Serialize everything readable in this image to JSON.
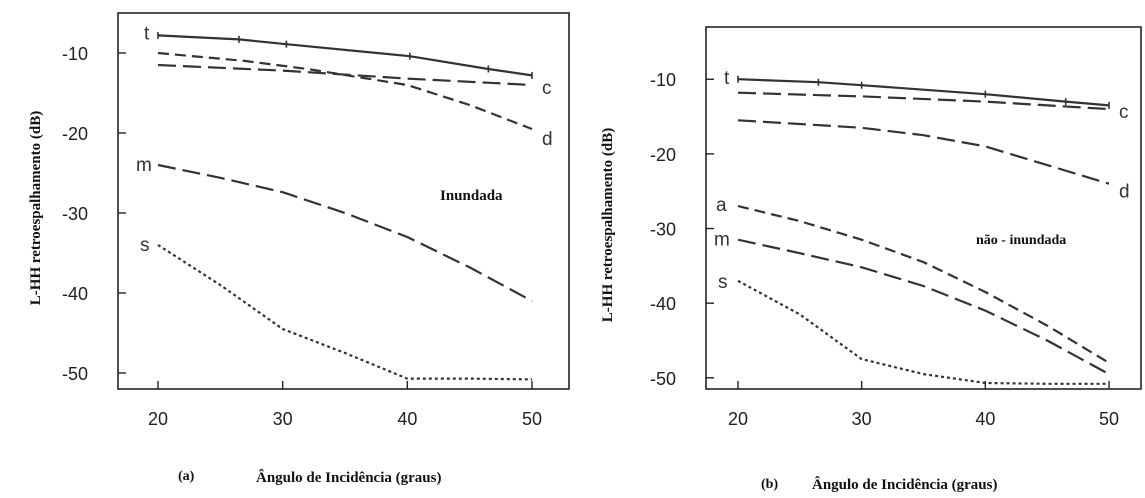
{
  "chart_data": [
    {
      "type": "line",
      "panel_label": "(a)",
      "xlabel": "Ângulo de Incidência (graus)",
      "ylabel": "L-HH retroespalhamento (dB)",
      "annotation": "Inundada",
      "xlim": [
        20,
        50
      ],
      "ylim": [
        -52,
        -5
      ],
      "x_ticks": [
        20,
        30,
        40,
        50
      ],
      "y_ticks": [
        -10,
        -20,
        -30,
        -40,
        -50
      ],
      "grid": false,
      "series": [
        {
          "name": "t",
          "style": "solid-markers",
          "x": [
            20,
            26.5,
            30.3,
            40.2,
            46.5,
            50
          ],
          "y": [
            -7.8,
            -8.3,
            -8.9,
            -10.4,
            -12,
            -12.8
          ]
        },
        {
          "name": "c",
          "style": "long-dash",
          "x": [
            20,
            30,
            40,
            50
          ],
          "y": [
            -11.5,
            -12.2,
            -13.2,
            -14
          ]
        },
        {
          "name": "d",
          "style": "dash",
          "x": [
            20,
            27,
            32,
            40,
            45,
            50
          ],
          "y": [
            -10,
            -11,
            -12,
            -14,
            -16.5,
            -19.5
          ]
        },
        {
          "name": "m",
          "style": "long-dash",
          "x": [
            20,
            25,
            30,
            35,
            40,
            45,
            50
          ],
          "y": [
            -24,
            -25.6,
            -27.4,
            -30,
            -33,
            -36.8,
            -41
          ]
        },
        {
          "name": "s",
          "style": "dotted",
          "x": [
            20,
            25,
            30,
            35,
            40,
            45,
            50
          ],
          "y": [
            -34,
            -39,
            -44.5,
            -47.5,
            -50.7,
            -50.7,
            -50.8
          ]
        }
      ]
    },
    {
      "type": "line",
      "panel_label": "(b)",
      "xlabel": "Ângulo de Incidência (graus)",
      "ylabel": "L-HH retroespalhamento (dB)",
      "annotation": "não - inundada",
      "xlim": [
        20,
        50
      ],
      "ylim": [
        -51.5,
        -3
      ],
      "x_ticks": [
        20,
        30,
        40,
        50
      ],
      "y_ticks": [
        -10,
        -20,
        -30,
        -40,
        -50
      ],
      "grid": false,
      "series": [
        {
          "name": "t",
          "style": "solid-markers",
          "x": [
            20,
            26.5,
            30,
            40,
            46.5,
            50
          ],
          "y": [
            -10,
            -10.4,
            -10.8,
            -12,
            -13,
            -13.5
          ]
        },
        {
          "name": "c",
          "style": "long-dash",
          "x": [
            20,
            30,
            40,
            50
          ],
          "y": [
            -11.8,
            -12.3,
            -13,
            -14
          ]
        },
        {
          "name": "d",
          "style": "long-dash",
          "x": [
            20,
            25,
            30,
            35,
            40,
            45,
            50
          ],
          "y": [
            -15.5,
            -16,
            -16.5,
            -17.5,
            -19,
            -21.5,
            -24
          ]
        },
        {
          "name": "a",
          "style": "dash",
          "x": [
            20,
            25,
            30,
            35,
            40,
            45,
            50
          ],
          "y": [
            -27,
            -29,
            -31.5,
            -34.5,
            -38.5,
            -43,
            -48
          ]
        },
        {
          "name": "m",
          "style": "long-dash",
          "x": [
            20,
            25,
            30,
            35,
            40,
            45,
            50
          ],
          "y": [
            -31.5,
            -33.3,
            -35.2,
            -37.7,
            -41,
            -45,
            -49.5
          ]
        },
        {
          "name": "s",
          "style": "dotted",
          "x": [
            20,
            25,
            30,
            35,
            40,
            45,
            50
          ],
          "y": [
            -37,
            -41.5,
            -47.5,
            -49.5,
            -50.7,
            -50.8,
            -50.8
          ]
        }
      ]
    }
  ]
}
